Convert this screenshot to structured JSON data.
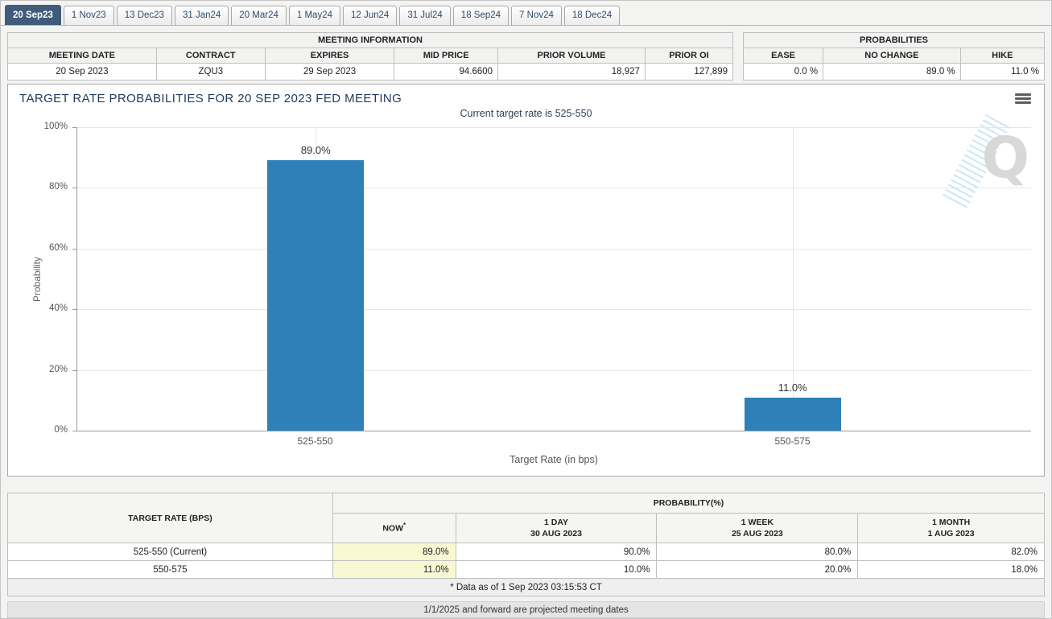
{
  "tabs": [
    {
      "label": "20 Sep23",
      "active": true
    },
    {
      "label": "1 Nov23",
      "active": false
    },
    {
      "label": "13 Dec23",
      "active": false
    },
    {
      "label": "31 Jan24",
      "active": false
    },
    {
      "label": "20 Mar24",
      "active": false
    },
    {
      "label": "1 May24",
      "active": false
    },
    {
      "label": "12 Jun24",
      "active": false
    },
    {
      "label": "31 Jul24",
      "active": false
    },
    {
      "label": "18 Sep24",
      "active": false
    },
    {
      "label": "7 Nov24",
      "active": false
    },
    {
      "label": "18 Dec24",
      "active": false
    }
  ],
  "meeting_info": {
    "title": "MEETING INFORMATION",
    "columns": [
      "MEETING DATE",
      "CONTRACT",
      "EXPIRES",
      "MID PRICE",
      "PRIOR VOLUME",
      "PRIOR OI"
    ],
    "values": [
      "20 Sep 2023",
      "ZQU3",
      "29 Sep 2023",
      "94.6600",
      "18,927",
      "127,899"
    ]
  },
  "probabilities_summary": {
    "title": "PROBABILITIES",
    "columns": [
      "EASE",
      "NO CHANGE",
      "HIKE"
    ],
    "values": [
      "0.0 %",
      "89.0 %",
      "11.0 %"
    ]
  },
  "chart": {
    "title": "TARGET RATE PROBABILITIES FOR 20 SEP 2023 FED MEETING",
    "subtitle": "Current target rate is 525-550",
    "ylabel": "Probability",
    "xlabel": "Target Rate (in bps)",
    "yticks": [
      "100%",
      "80%",
      "60%",
      "40%",
      "20%",
      "0%"
    ],
    "watermark_letter": "Q"
  },
  "chart_data": {
    "type": "bar",
    "categories": [
      "525-550",
      "550-575"
    ],
    "values": [
      89.0,
      11.0
    ],
    "labels": [
      "89.0%",
      "11.0%"
    ],
    "title": "TARGET RATE PROBABILITIES FOR 20 SEP 2023 FED MEETING",
    "subtitle": "Current target rate is 525-550",
    "xlabel": "Target Rate (in bps)",
    "ylabel": "Probability",
    "ylim": [
      0,
      100
    ],
    "grid": true,
    "bar_color": "#2e81b8"
  },
  "probability_table": {
    "col1_header": "TARGET RATE (BPS)",
    "group_header": "PROBABILITY(%)",
    "sub_headers": [
      {
        "line1": "NOW",
        "sup": "*",
        "line2": ""
      },
      {
        "line1": "1 DAY",
        "line2": "30 AUG 2023"
      },
      {
        "line1": "1 WEEK",
        "line2": "25 AUG 2023"
      },
      {
        "line1": "1 MONTH",
        "line2": "1 AUG 2023"
      }
    ],
    "rows": [
      {
        "target": "525-550 (Current)",
        "now": "89.0%",
        "day": "90.0%",
        "week": "80.0%",
        "month": "82.0%"
      },
      {
        "target": "550-575",
        "now": "11.0%",
        "day": "10.0%",
        "week": "20.0%",
        "month": "18.0%"
      }
    ],
    "footnote": "* Data as of 1 Sep 2023 03:15:53 CT"
  },
  "footer": {
    "note": "1/1/2025 and forward are projected meeting dates"
  },
  "colors": {
    "active_tab": "#3f5c7a",
    "bar": "#2e81b8",
    "now_highlight": "#f8f8d2",
    "chart_title": "#1d3a5c",
    "header_bg": "#f2f2f1"
  }
}
